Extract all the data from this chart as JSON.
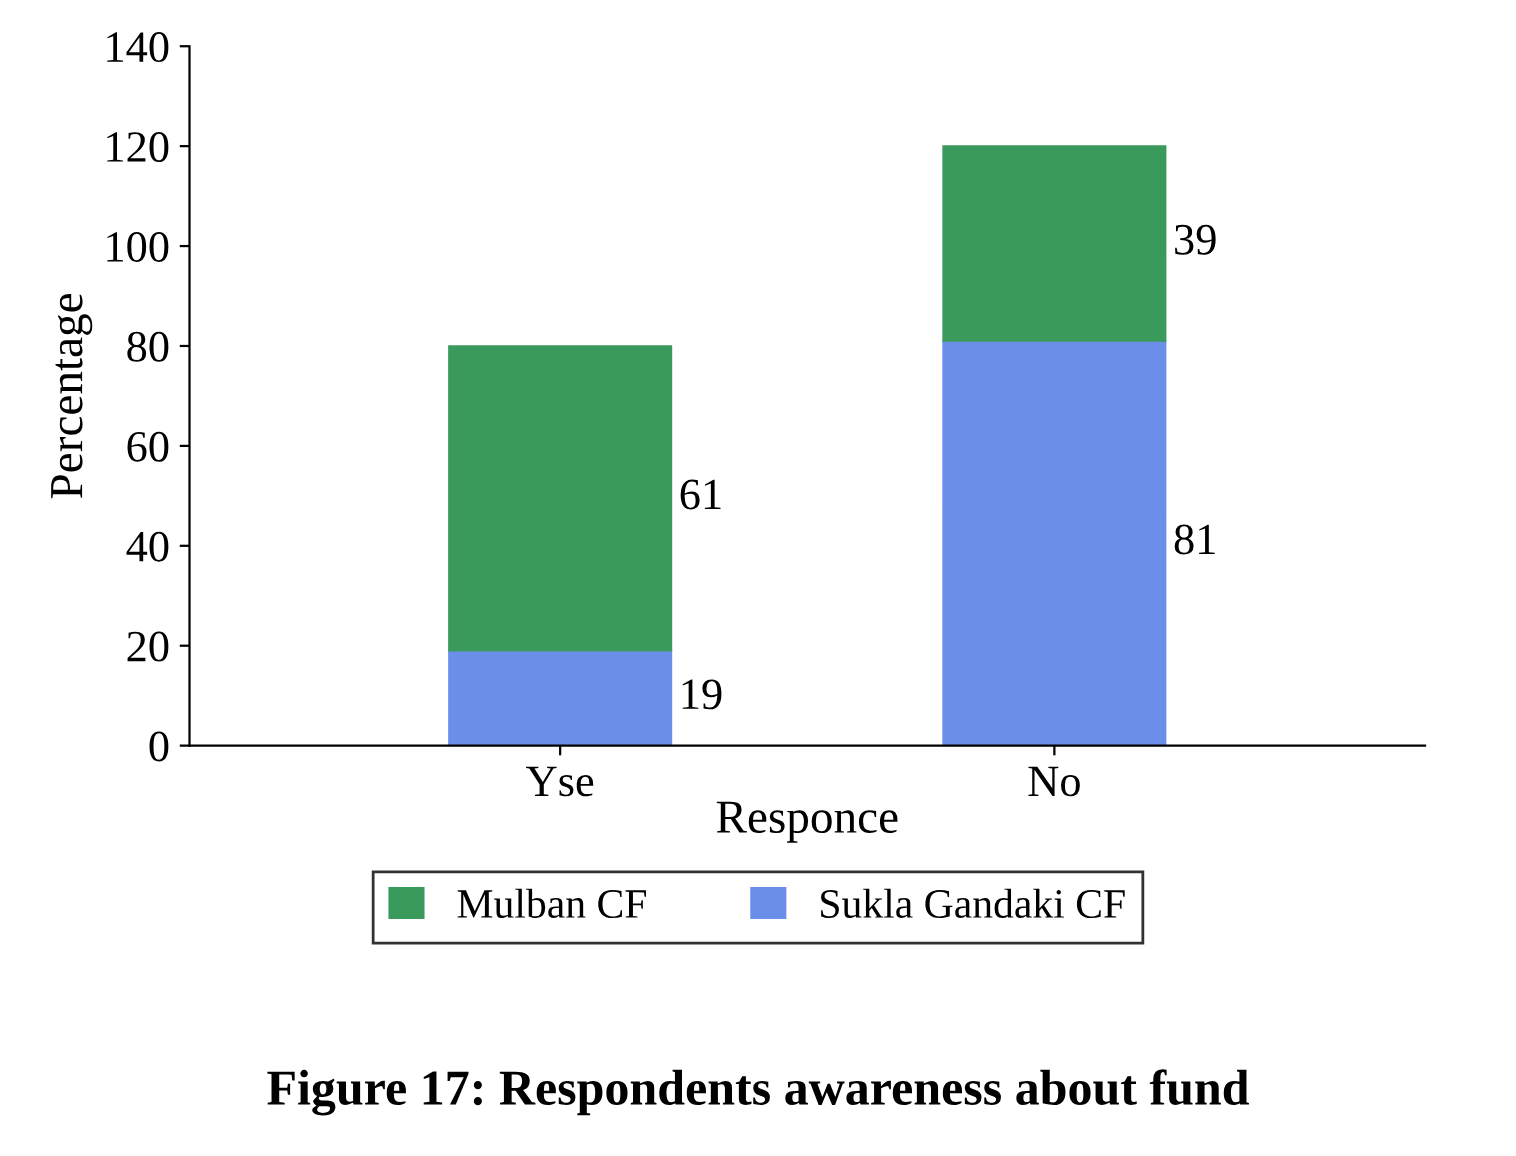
{
  "chart_data": {
    "type": "bar",
    "title": "Figure 17: Respondents awareness about fund",
    "xlabel": "Responce",
    "ylabel": "Percentage",
    "categories": [
      "Yse",
      "No"
    ],
    "series": [
      {
        "name": "Sukla Gandaki CF",
        "color": "#6b8fe8",
        "values": [
          19,
          81
        ]
      },
      {
        "name": "Mulban CF",
        "color": "#3a9a5c",
        "values": [
          61,
          39
        ]
      }
    ],
    "stacked": true,
    "data_labels": true,
    "ylim": [
      0,
      140
    ],
    "yticks": [
      0,
      20,
      40,
      60,
      80,
      100,
      120,
      140
    ],
    "grid": false,
    "legend": "bottom"
  }
}
